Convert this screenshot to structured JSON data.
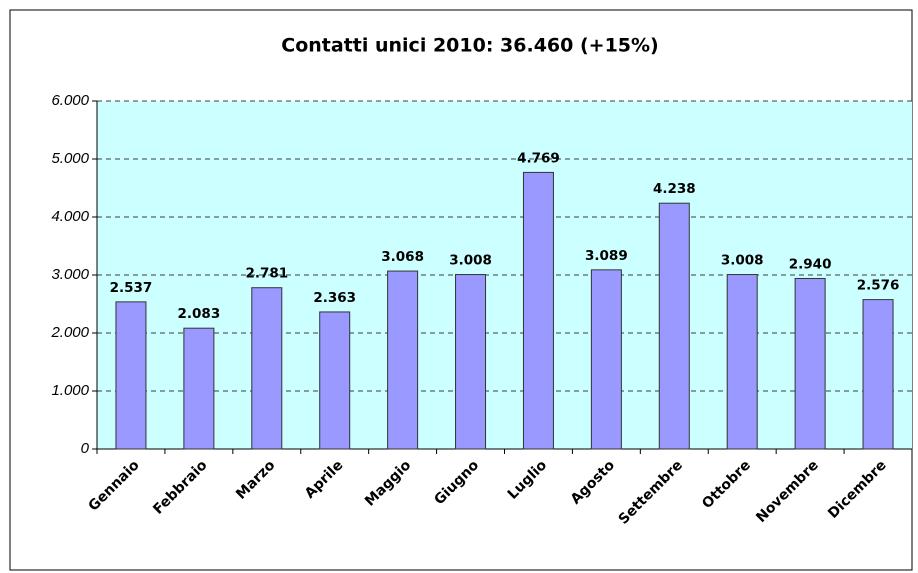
{
  "chart_data": {
    "type": "bar",
    "title": "Contatti unici 2010: 36.460 (+15%)",
    "categories": [
      "Gennaio",
      "Febbraio",
      "Marzo",
      "Aprile",
      "Maggio",
      "Giugno",
      "Luglio",
      "Agosto",
      "Settembre",
      "Ottobre",
      "Novembre",
      "Dicembre"
    ],
    "values": [
      2537,
      2083,
      2781,
      2363,
      3068,
      3008,
      4769,
      3089,
      4238,
      3008,
      2940,
      2576
    ],
    "value_labels": [
      "2.537",
      "2.083",
      "2.781",
      "2.363",
      "3.068",
      "3.008",
      "4.769",
      "3.089",
      "4.238",
      "3.008",
      "2.940",
      "2.576"
    ],
    "color": "#9999ff",
    "ylim": [
      0,
      6000
    ],
    "yticks": [
      0,
      {
        "value": 1000,
        "label": "1.000"
      },
      {
        "value": 2000,
        "label": "2.000"
      },
      {
        "value": 3000,
        "label": "3.000"
      },
      {
        "value": 4000,
        "label": "4.000"
      },
      {
        "value": 5000,
        "label": "5.000"
      },
      {
        "value": 6000,
        "label": "6.000"
      }
    ],
    "grid": true
  }
}
